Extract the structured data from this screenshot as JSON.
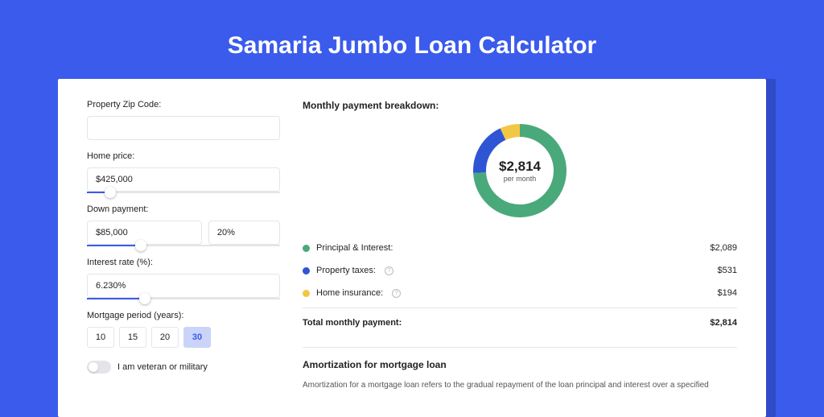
{
  "page_title": "Samaria Jumbo Loan Calculator",
  "colors": {
    "page_bg": "#3b5bec",
    "card_shadow": "#2f4bc7",
    "accent": "#3b5bec",
    "border": "#e3e5e9",
    "text": "#222222"
  },
  "form": {
    "zip": {
      "label": "Property Zip Code:",
      "value": ""
    },
    "home_price": {
      "label": "Home price:",
      "value": "$425,000",
      "slider_pct": 12
    },
    "down_payment": {
      "label": "Down payment:",
      "amount": "$85,000",
      "percent": "20%",
      "slider_pct": 28
    },
    "interest_rate": {
      "label": "Interest rate (%):",
      "value": "6.230%",
      "slider_pct": 30
    },
    "mortgage_period": {
      "label": "Mortgage period (years):",
      "options": [
        "10",
        "15",
        "20",
        "30"
      ],
      "selected": "30"
    },
    "veteran": {
      "label": "I am veteran or military",
      "on": false
    }
  },
  "breakdown": {
    "title": "Monthly payment breakdown:",
    "center_amount": "$2,814",
    "center_sub": "per month",
    "chart": {
      "type": "donut",
      "thickness": 16,
      "radius": 62,
      "segments": [
        {
          "label": "Principal & Interest:",
          "value": "$2,089",
          "color": "#4aa97a",
          "pct": 74.2
        },
        {
          "label": "Property taxes:",
          "value": "$531",
          "color": "#2f55d4",
          "pct": 18.9,
          "info": true
        },
        {
          "label": "Home insurance:",
          "value": "$194",
          "color": "#f2c744",
          "pct": 6.9,
          "info": true
        }
      ]
    },
    "total": {
      "label": "Total monthly payment:",
      "value": "$2,814"
    }
  },
  "amortization": {
    "title": "Amortization for mortgage loan",
    "text": "Amortization for a mortgage loan refers to the gradual repayment of the loan principal and interest over a specified"
  }
}
